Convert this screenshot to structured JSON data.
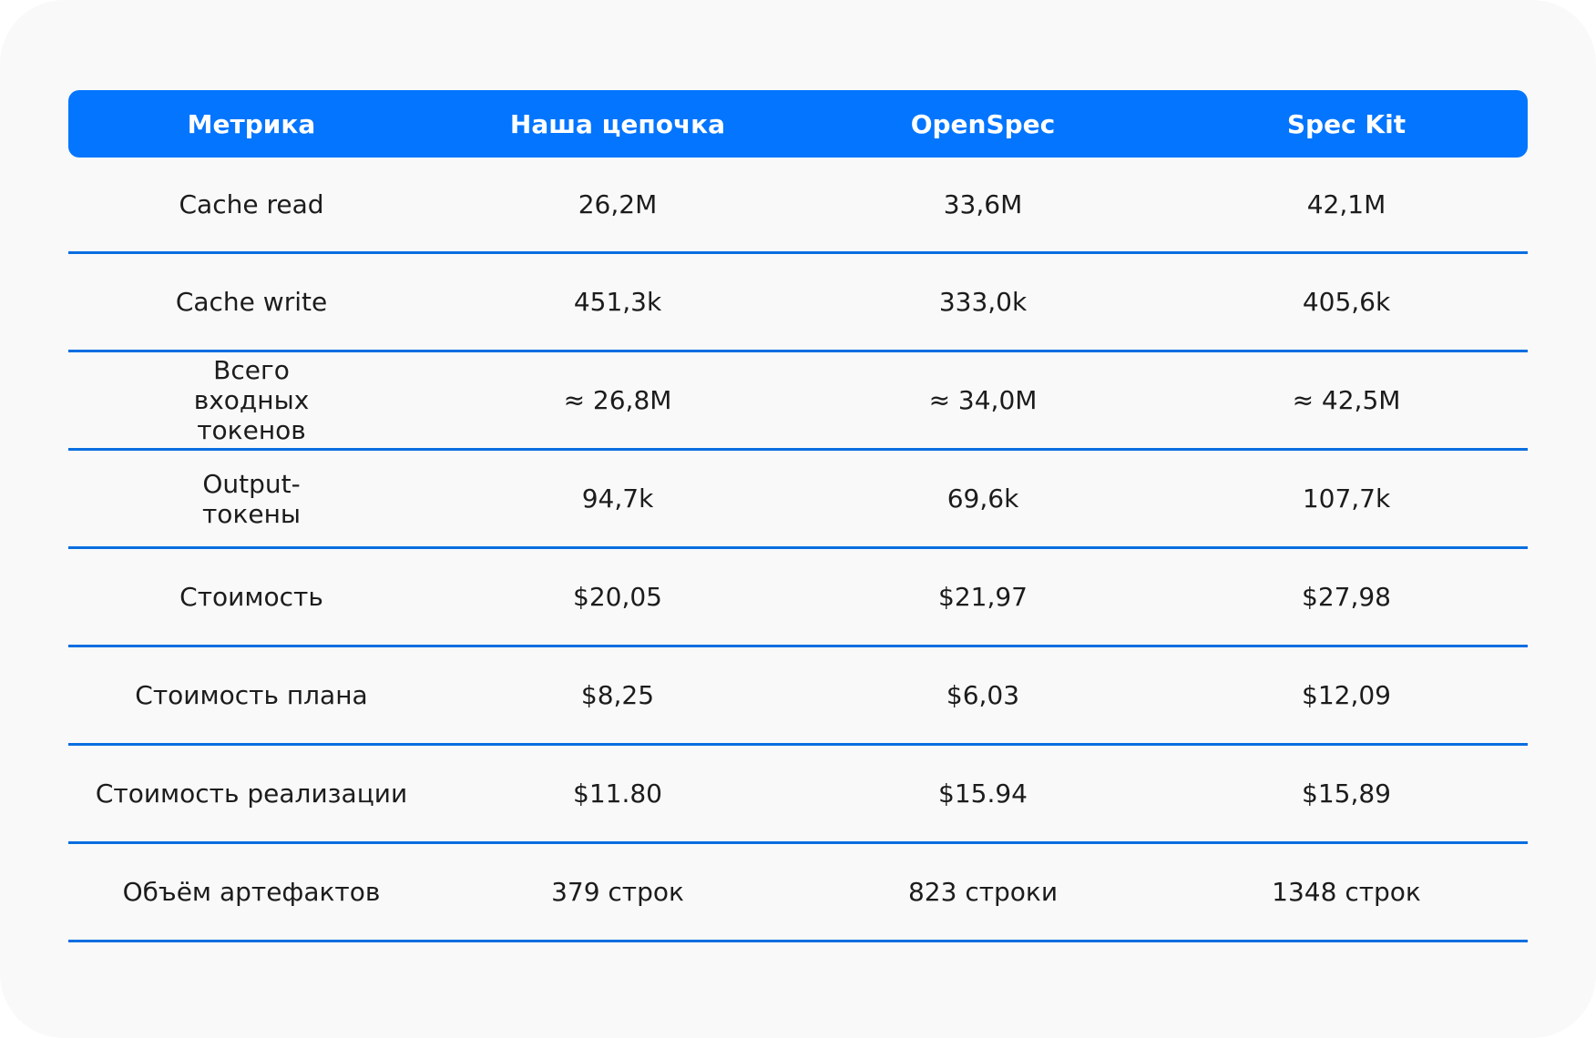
{
  "table": {
    "headers": [
      "Метрика",
      "Наша цепочка",
      "OpenSpec",
      "Spec Kit"
    ],
    "rows": [
      [
        "Cache read",
        "26,2M",
        "33,6M",
        "42,1M"
      ],
      [
        "Cache write",
        "451,3k",
        "333,0k",
        "405,6k"
      ],
      [
        "Всего входных токенов",
        "≈ 26,8M",
        "≈ 34,0M",
        "≈ 42,5M"
      ],
      [
        "Output-токены",
        "94,7k",
        "69,6k",
        "107,7k"
      ],
      [
        "Стоимость",
        "$20,05",
        "$21,97",
        "$27,98"
      ],
      [
        "Стоимость плана",
        "$8,25",
        "$6,03",
        "$12,09"
      ],
      [
        "Стоимость реализации",
        "$11.80",
        "$15.94",
        "$15,89"
      ],
      [
        "Объём артефактов",
        "379 строк",
        "823 строки",
        "1348 строк"
      ]
    ]
  },
  "colors": {
    "header_bg": "#0375fe",
    "header_text": "#ffffff",
    "divider": "#0a6ee0",
    "card_bg": "#f9f9f9",
    "cell_text": "#1c1c1c"
  }
}
